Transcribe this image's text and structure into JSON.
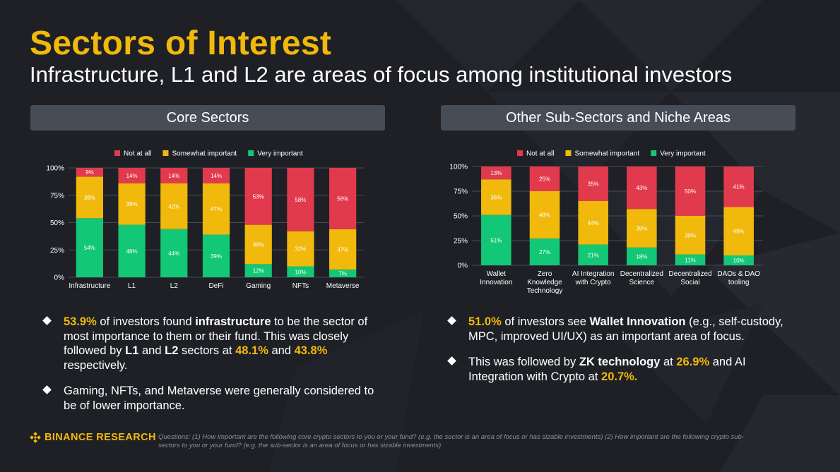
{
  "title": "Sectors of Interest",
  "subtitle": "Infrastructure, L1 and L2 are areas of focus among institutional investors",
  "panels": {
    "left_header": "Core Sectors",
    "right_header": "Other Sub-Sectors and Niche Areas"
  },
  "colors": {
    "not_at_all": "#e23a4d",
    "somewhat_important": "#f0b90b",
    "very_important": "#12c775",
    "accent": "#f0b90b",
    "background": "#1e2026"
  },
  "chart_data": [
    {
      "type": "bar",
      "stacked": true,
      "title": "",
      "xlabel": "",
      "ylabel": "",
      "ylim": [
        0,
        100
      ],
      "yticks": [
        "0%",
        "25%",
        "50%",
        "75%",
        "100%"
      ],
      "legend_position": "top",
      "grid": true,
      "categories": [
        "Infrastructure",
        "L1",
        "L2",
        "DeFi",
        "Gaming",
        "NFTs",
        "Metaverse"
      ],
      "series": [
        {
          "name": "Very important",
          "color": "#12c775",
          "values": [
            54,
            48,
            44,
            39,
            12,
            10,
            7
          ],
          "labels": [
            "54%",
            "48%",
            "44%",
            "39%",
            "12%",
            "10%",
            "7%"
          ]
        },
        {
          "name": "Somewhat important",
          "color": "#f0b90b",
          "values": [
            38,
            38,
            42,
            47,
            36,
            32,
            37
          ],
          "labels": [
            "38%",
            "38%",
            "42%",
            "47%",
            "36%",
            "32%",
            "37%"
          ]
        },
        {
          "name": "Not at all",
          "color": "#e23a4d",
          "values": [
            9,
            14,
            14,
            14,
            53,
            58,
            56
          ],
          "labels": [
            "9%",
            "14%",
            "14%",
            "14%",
            "53%",
            "58%",
            "56%"
          ]
        }
      ]
    },
    {
      "type": "bar",
      "stacked": true,
      "title": "",
      "xlabel": "",
      "ylabel": "",
      "ylim": [
        0,
        100
      ],
      "yticks": [
        "0%",
        "25%",
        "50%",
        "75%",
        "100%"
      ],
      "legend_position": "top",
      "grid": true,
      "categories": [
        "Wallet Innovation",
        "Zero Knowledge Technology",
        "AI Integration with Crypto",
        "Decentralized Science",
        "Decentralized Social",
        "DAOs & DAO tooling"
      ],
      "category_lines": [
        [
          "Wallet",
          "Innovation"
        ],
        [
          "Zero",
          "Knowledge",
          "Technology"
        ],
        [
          "AI Integration",
          "with Crypto"
        ],
        [
          "Decentralized",
          "Science"
        ],
        [
          "Decentralized",
          "Social"
        ],
        [
          "DAOs & DAO",
          "tooling"
        ]
      ],
      "series": [
        {
          "name": "Very important",
          "color": "#12c775",
          "values": [
            51,
            27,
            21,
            18,
            11,
            10
          ],
          "labels": [
            "51%",
            "27%",
            "21%",
            "18%",
            "11%",
            "10%"
          ]
        },
        {
          "name": "Somewhat important",
          "color": "#f0b90b",
          "values": [
            36,
            48,
            44,
            39,
            39,
            49
          ],
          "labels": [
            "36%",
            "48%",
            "44%",
            "39%",
            "39%",
            "49%"
          ]
        },
        {
          "name": "Not at all",
          "color": "#e23a4d",
          "values": [
            13,
            25,
            35,
            43,
            50,
            41
          ],
          "labels": [
            "13%",
            "25%",
            "35%",
            "43%",
            "50%",
            "41%"
          ]
        }
      ]
    }
  ],
  "legend_order": [
    "Not at all",
    "Somewhat important",
    "Very important"
  ],
  "bullets_left": [
    {
      "parts": [
        {
          "text": "53.9%",
          "style": "hl"
        },
        {
          "text": " of investors found ",
          "style": ""
        },
        {
          "text": "infrastructure",
          "style": "b"
        },
        {
          "text": " to be the sector of most importance to them or their fund. This was closely followed by ",
          "style": ""
        },
        {
          "text": "L1",
          "style": "b"
        },
        {
          "text": " and ",
          "style": ""
        },
        {
          "text": "L2",
          "style": "b"
        },
        {
          "text": " sectors at ",
          "style": ""
        },
        {
          "text": "48.1%",
          "style": "hl"
        },
        {
          "text": " and ",
          "style": ""
        },
        {
          "text": "43.8%",
          "style": "hl"
        },
        {
          "text": " respectively.",
          "style": ""
        }
      ]
    },
    {
      "parts": [
        {
          "text": "Gaming, NFTs, and Metaverse were generally considered to be of lower importance.",
          "style": ""
        }
      ]
    }
  ],
  "bullets_right": [
    {
      "parts": [
        {
          "text": "51.0%",
          "style": "hl"
        },
        {
          "text": " of investors see ",
          "style": ""
        },
        {
          "text": "Wallet Innovation",
          "style": "b"
        },
        {
          "text": " (e.g., self-custody, MPC, improved UI/UX) as an important area of focus.",
          "style": ""
        }
      ]
    },
    {
      "parts": [
        {
          "text": "This was followed by ",
          "style": ""
        },
        {
          "text": "ZK technology",
          "style": "b"
        },
        {
          "text": " at ",
          "style": ""
        },
        {
          "text": "26.9%",
          "style": "hl"
        },
        {
          "text": " and AI Integration with Crypto at ",
          "style": ""
        },
        {
          "text": "20.7%.",
          "style": "hl"
        }
      ]
    }
  ],
  "footer": {
    "logo_text": "BINANCE RESEARCH",
    "logo_icon": "binance-diamond-icon",
    "note": "Questions: (1) How important are the following core crypto sectors to you or your fund? (e.g. the sector is an area of focus or has sizable investments) (2) How important are the following crypto sub-sectors to you or your fund? (e.g. the sub-sector is an area of focus or has sizable investments)"
  }
}
